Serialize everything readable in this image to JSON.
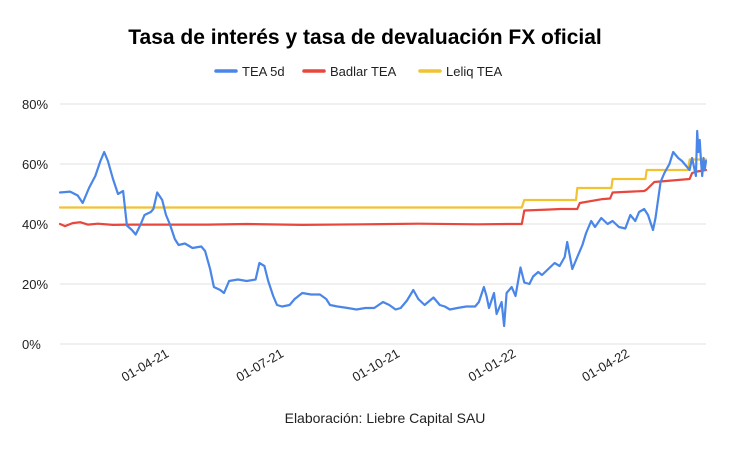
{
  "chart_data": {
    "type": "line",
    "title": "Tasa de interés y tasa de devaluación FX oficial",
    "xlabel": "Elaboración: Liebre Capital SAU",
    "ylabel": "",
    "ylim": [
      0,
      80
    ],
    "yticks": [
      "0%",
      "20%",
      "40%",
      "60%",
      "80%"
    ],
    "ytick_values": [
      0,
      20,
      40,
      60,
      80
    ],
    "xrange": [
      "2021-01-04",
      "2022-05-31"
    ],
    "xticks": [
      {
        "label": "01-04-21",
        "date": "2021-04-01"
      },
      {
        "label": "01-07-21",
        "date": "2021-07-01"
      },
      {
        "label": "01-10-21",
        "date": "2021-10-01"
      },
      {
        "label": "01-01-22",
        "date": "2022-01-01"
      },
      {
        "label": "01-04-22",
        "date": "2022-04-01"
      }
    ],
    "grid": true,
    "legend_position": "top",
    "series": [
      {
        "name": "TEA 5d",
        "color": "#4a86e8",
        "points": [
          [
            "2021-01-04",
            50.5
          ],
          [
            "2021-01-12",
            50.8
          ],
          [
            "2021-01-18",
            49.5
          ],
          [
            "2021-01-22",
            47
          ],
          [
            "2021-01-27",
            52
          ],
          [
            "2021-02-01",
            56
          ],
          [
            "2021-02-05",
            61
          ],
          [
            "2021-02-08",
            64
          ],
          [
            "2021-02-11",
            61
          ],
          [
            "2021-02-15",
            55
          ],
          [
            "2021-02-19",
            50
          ],
          [
            "2021-02-23",
            51
          ],
          [
            "2021-02-26",
            39.5
          ],
          [
            "2021-03-02",
            38
          ],
          [
            "2021-03-05",
            36.5
          ],
          [
            "2021-03-09",
            40
          ],
          [
            "2021-03-12",
            43
          ],
          [
            "2021-03-17",
            44
          ],
          [
            "2021-03-19",
            45
          ],
          [
            "2021-03-22",
            50.5
          ],
          [
            "2021-03-26",
            48
          ],
          [
            "2021-03-29",
            43
          ],
          [
            "2021-04-01",
            40
          ],
          [
            "2021-04-05",
            35
          ],
          [
            "2021-04-08",
            33
          ],
          [
            "2021-04-13",
            33.5
          ],
          [
            "2021-04-19",
            32
          ],
          [
            "2021-04-26",
            32.5
          ],
          [
            "2021-04-29",
            31
          ],
          [
            "2021-05-03",
            25
          ],
          [
            "2021-05-06",
            19
          ],
          [
            "2021-05-11",
            18
          ],
          [
            "2021-05-14",
            17
          ],
          [
            "2021-05-18",
            21
          ],
          [
            "2021-05-25",
            21.5
          ],
          [
            "2021-06-01",
            21
          ],
          [
            "2021-06-08",
            21.5
          ],
          [
            "2021-06-11",
            27
          ],
          [
            "2021-06-15",
            26
          ],
          [
            "2021-06-18",
            21
          ],
          [
            "2021-06-22",
            16
          ],
          [
            "2021-06-25",
            13
          ],
          [
            "2021-06-29",
            12.5
          ],
          [
            "2021-07-05",
            13
          ],
          [
            "2021-07-09",
            15
          ],
          [
            "2021-07-15",
            17
          ],
          [
            "2021-07-22",
            16.5
          ],
          [
            "2021-07-29",
            16.5
          ],
          [
            "2021-08-03",
            15
          ],
          [
            "2021-08-06",
            13
          ],
          [
            "2021-08-12",
            12.5
          ],
          [
            "2021-08-20",
            12
          ],
          [
            "2021-08-27",
            11.5
          ],
          [
            "2021-09-03",
            12
          ],
          [
            "2021-09-10",
            12
          ],
          [
            "2021-09-17",
            14
          ],
          [
            "2021-09-22",
            13
          ],
          [
            "2021-09-27",
            11.5
          ],
          [
            "2021-10-01",
            12
          ],
          [
            "2021-10-06",
            14.5
          ],
          [
            "2021-10-11",
            18
          ],
          [
            "2021-10-15",
            15
          ],
          [
            "2021-10-20",
            13
          ],
          [
            "2021-10-27",
            15.5
          ],
          [
            "2021-11-01",
            13
          ],
          [
            "2021-11-05",
            12.5
          ],
          [
            "2021-11-09",
            11.5
          ],
          [
            "2021-11-15",
            12
          ],
          [
            "2021-11-22",
            12.5
          ],
          [
            "2021-11-29",
            12.5
          ],
          [
            "2021-12-02",
            14
          ],
          [
            "2021-12-06",
            19
          ],
          [
            "2021-12-08",
            16
          ],
          [
            "2021-12-10",
            12
          ],
          [
            "2021-12-14",
            17
          ],
          [
            "2021-12-16",
            10
          ],
          [
            "2021-12-20",
            14
          ],
          [
            "2021-12-22",
            6
          ],
          [
            "2021-12-24",
            17
          ],
          [
            "2021-12-28",
            19
          ],
          [
            "2021-12-31",
            16
          ],
          [
            "2022-01-04",
            25.5
          ],
          [
            "2022-01-07",
            20.5
          ],
          [
            "2022-01-11",
            20
          ],
          [
            "2022-01-14",
            22.5
          ],
          [
            "2022-01-18",
            24
          ],
          [
            "2022-01-21",
            23
          ],
          [
            "2022-01-26",
            25
          ],
          [
            "2022-01-31",
            27
          ],
          [
            "2022-02-04",
            26
          ],
          [
            "2022-02-08",
            29
          ],
          [
            "2022-02-10",
            34
          ],
          [
            "2022-02-14",
            25
          ],
          [
            "2022-02-16",
            27
          ],
          [
            "2022-02-18",
            29
          ],
          [
            "2022-02-22",
            33
          ],
          [
            "2022-02-25",
            37
          ],
          [
            "2022-03-01",
            41
          ],
          [
            "2022-03-04",
            39
          ],
          [
            "2022-03-09",
            42
          ],
          [
            "2022-03-14",
            40
          ],
          [
            "2022-03-18",
            41
          ],
          [
            "2022-03-23",
            39
          ],
          [
            "2022-03-28",
            38.5
          ],
          [
            "2022-04-01",
            43
          ],
          [
            "2022-04-05",
            41
          ],
          [
            "2022-04-08",
            44
          ],
          [
            "2022-04-12",
            45
          ],
          [
            "2022-04-15",
            43
          ],
          [
            "2022-04-19",
            38
          ],
          [
            "2022-04-21",
            42
          ],
          [
            "2022-04-25",
            54
          ],
          [
            "2022-04-28",
            57
          ],
          [
            "2022-05-02",
            60
          ],
          [
            "2022-05-05",
            64
          ],
          [
            "2022-05-09",
            62
          ],
          [
            "2022-05-12",
            61
          ],
          [
            "2022-05-16",
            59
          ],
          [
            "2022-05-18",
            58
          ],
          [
            "2022-05-20",
            62
          ],
          [
            "2022-05-23",
            56
          ],
          [
            "2022-05-24",
            71
          ],
          [
            "2022-05-25",
            64
          ],
          [
            "2022-05-26",
            68
          ],
          [
            "2022-05-27",
            61
          ],
          [
            "2022-05-28",
            56
          ],
          [
            "2022-05-29",
            62
          ],
          [
            "2022-05-30",
            58
          ],
          [
            "2022-05-31",
            61
          ]
        ]
      },
      {
        "name": "Badlar TEA",
        "color": "#e8473e",
        "points": [
          [
            "2021-01-04",
            40
          ],
          [
            "2021-01-08",
            39.3
          ],
          [
            "2021-01-14",
            40.3
          ],
          [
            "2021-01-20",
            40.6
          ],
          [
            "2021-01-26",
            39.8
          ],
          [
            "2021-02-03",
            40.1
          ],
          [
            "2021-02-15",
            39.7
          ],
          [
            "2021-03-01",
            39.8
          ],
          [
            "2021-05-01",
            39.8
          ],
          [
            "2021-06-01",
            40
          ],
          [
            "2021-07-15",
            39.7
          ],
          [
            "2021-09-01",
            39.9
          ],
          [
            "2021-10-15",
            40.1
          ],
          [
            "2021-12-01",
            39.9
          ],
          [
            "2021-12-28",
            40
          ],
          [
            "2022-01-05",
            40
          ],
          [
            "2022-01-07",
            44.5
          ],
          [
            "2022-01-25",
            44.8
          ],
          [
            "2022-02-05",
            45
          ],
          [
            "2022-02-18",
            45
          ],
          [
            "2022-02-20",
            47
          ],
          [
            "2022-03-10",
            48.3
          ],
          [
            "2022-03-16",
            48.5
          ],
          [
            "2022-03-18",
            50.5
          ],
          [
            "2022-04-12",
            51
          ],
          [
            "2022-04-14",
            51.5
          ],
          [
            "2022-04-20",
            54
          ],
          [
            "2022-05-04",
            54.5
          ],
          [
            "2022-05-18",
            55
          ],
          [
            "2022-05-20",
            57
          ],
          [
            "2022-05-24",
            57.5
          ],
          [
            "2022-05-31",
            58
          ]
        ]
      },
      {
        "name": "Leliq TEA",
        "color": "#f1c232",
        "points": [
          [
            "2021-01-04",
            45.5
          ],
          [
            "2022-01-05",
            45.5
          ],
          [
            "2022-01-07",
            48
          ],
          [
            "2022-02-17",
            48
          ],
          [
            "2022-02-18",
            52
          ],
          [
            "2022-03-17",
            52
          ],
          [
            "2022-03-18",
            55
          ],
          [
            "2022-04-13",
            55
          ],
          [
            "2022-04-14",
            58
          ],
          [
            "2022-05-17",
            58
          ],
          [
            "2022-05-18",
            61.5
          ],
          [
            "2022-05-31",
            61.5
          ]
        ]
      }
    ]
  }
}
